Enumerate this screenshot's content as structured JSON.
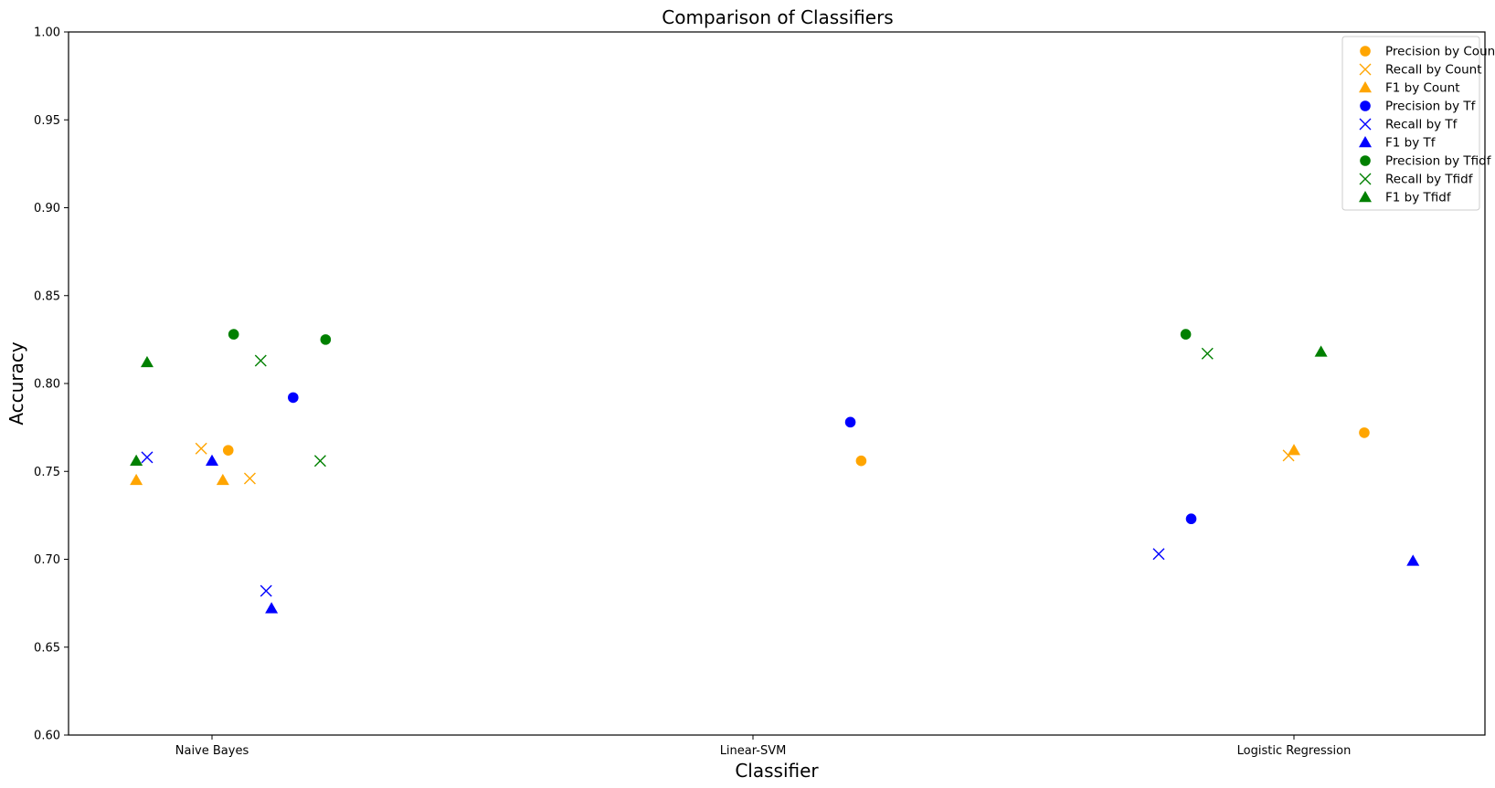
{
  "chart_data": {
    "type": "scatter",
    "title": "Comparison of Classifiers",
    "xlabel": "Classifier",
    "ylabel": "Accuracy",
    "categories": [
      "Naive Bayes",
      "Linear-SVM",
      "Logistic Regression"
    ],
    "ylim": [
      0.6,
      1.0
    ],
    "yticks": [
      "0.60",
      "0.65",
      "0.70",
      "0.75",
      "0.80",
      "0.85",
      "0.90",
      "0.95",
      "1.00"
    ],
    "grid": false,
    "legend_position": "top-right",
    "series": [
      {
        "name": "Precision by Count",
        "color": "#ffa500",
        "marker": "circle",
        "points": [
          {
            "x": 0.03,
            "y": 0.762
          },
          {
            "x": 1.2,
            "y": 0.756
          },
          {
            "x": 2.13,
            "y": 0.772
          }
        ]
      },
      {
        "name": "Recall by Count",
        "color": "#ffa500",
        "marker": "x",
        "points": [
          {
            "x": -0.02,
            "y": 0.763
          },
          {
            "x": 0.07,
            "y": 0.746
          },
          {
            "x": 1.99,
            "y": 0.759
          }
        ]
      },
      {
        "name": "F1 by Count",
        "color": "#ffa500",
        "marker": "triangle",
        "points": [
          {
            "x": -0.14,
            "y": 0.745
          },
          {
            "x": 0.02,
            "y": 0.745
          },
          {
            "x": 2.0,
            "y": 0.762
          }
        ]
      },
      {
        "name": "Precision by Tf",
        "color": "#0000ff",
        "marker": "circle",
        "points": [
          {
            "x": 0.15,
            "y": 0.792
          },
          {
            "x": 1.18,
            "y": 0.778
          },
          {
            "x": 1.81,
            "y": 0.723
          }
        ]
      },
      {
        "name": "Recall by Tf",
        "color": "#0000ff",
        "marker": "x",
        "points": [
          {
            "x": 0.1,
            "y": 0.682
          },
          {
            "x": -0.12,
            "y": 0.758
          },
          {
            "x": 1.75,
            "y": 0.703
          }
        ]
      },
      {
        "name": "F1 by Tf",
        "color": "#0000ff",
        "marker": "triangle",
        "points": [
          {
            "x": 0.11,
            "y": 0.672
          },
          {
            "x": 0.0,
            "y": 0.756
          },
          {
            "x": 2.22,
            "y": 0.699
          }
        ]
      },
      {
        "name": "Precision by Tfidf",
        "color": "#008000",
        "marker": "circle",
        "points": [
          {
            "x": 0.21,
            "y": 0.825
          },
          {
            "x": 0.04,
            "y": 0.828
          },
          {
            "x": 1.8,
            "y": 0.828
          }
        ]
      },
      {
        "name": "Recall by Tfidf",
        "color": "#008000",
        "marker": "x",
        "points": [
          {
            "x": 0.2,
            "y": 0.756
          },
          {
            "x": 0.09,
            "y": 0.813
          },
          {
            "x": 1.84,
            "y": 0.817
          }
        ]
      },
      {
        "name": "F1 by Tfidf",
        "color": "#008000",
        "marker": "triangle",
        "points": [
          {
            "x": -0.14,
            "y": 0.756
          },
          {
            "x": -0.12,
            "y": 0.812
          },
          {
            "x": 2.05,
            "y": 0.818
          }
        ]
      }
    ]
  }
}
